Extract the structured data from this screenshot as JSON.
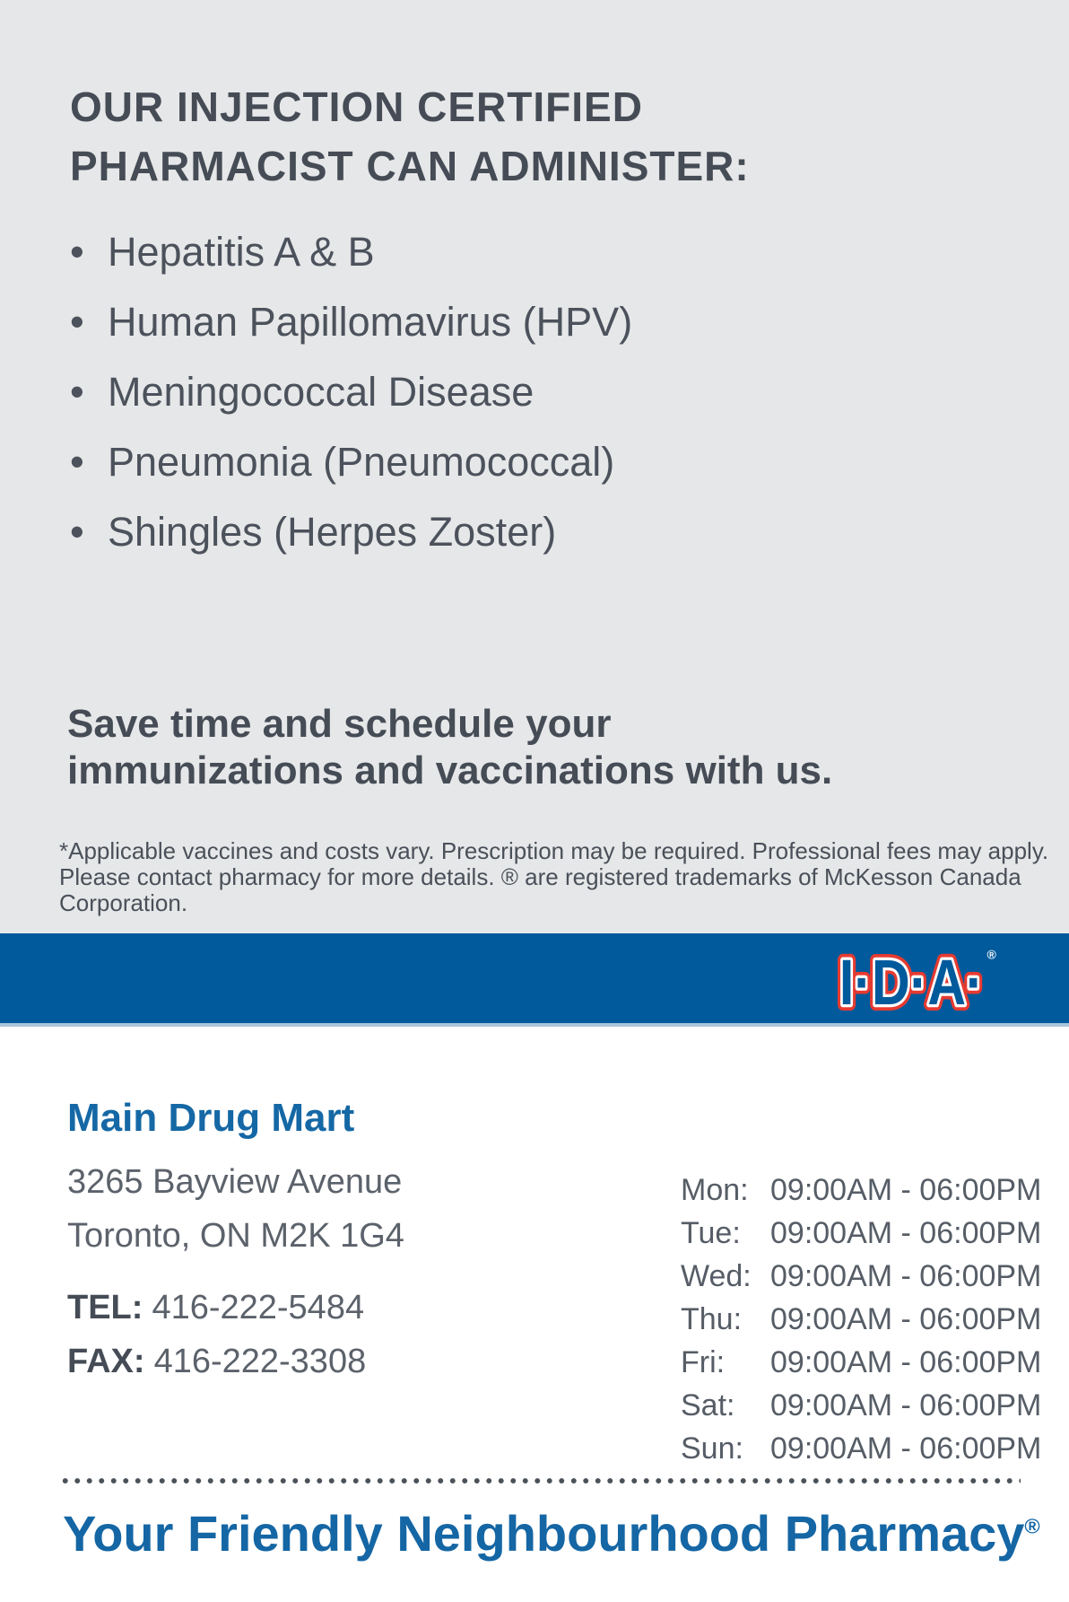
{
  "header": {
    "title_line1": "OUR INJECTION CERTIFIED",
    "title_line2": "PHARMACIST CAN ADMINISTER:",
    "bullet_char": "•",
    "bullets": [
      "Hepatitis A & B",
      "Human Papillomavirus (HPV)",
      "Meningococcal Disease",
      "Pneumonia (Pneumococcal)",
      "Shingles (Herpes Zoster)"
    ],
    "cta_line1": "Save time and schedule your",
    "cta_line2": "immunizations and vaccinations with us.",
    "disclaimer_line1": "*Applicable vaccines and costs vary. Prescription may be required. Professional fees may apply.",
    "disclaimer_line2": "Please contact pharmacy for more details. ® are registered trademarks of McKesson Canada Corporation."
  },
  "banner": {
    "logo_text": "I·D·A·",
    "registered": "®"
  },
  "store": {
    "name": "Main Drug Mart",
    "address_line1": "3265 Bayview Avenue",
    "address_line2": "Toronto, ON M2K 1G4",
    "tel_label": "TEL:",
    "tel": "416-222-5484",
    "fax_label": "FAX:",
    "fax": "416-222-3308"
  },
  "hours": [
    {
      "day": "Mon:",
      "time": "09:00AM - 06:00PM"
    },
    {
      "day": "Tue:",
      "time": "09:00AM - 06:00PM"
    },
    {
      "day": "Wed:",
      "time": "09:00AM - 06:00PM"
    },
    {
      "day": "Thu:",
      "time": "09:00AM - 06:00PM"
    },
    {
      "day": "Fri:",
      "time": "09:00AM - 06:00PM"
    },
    {
      "day": "Sat:",
      "time": "09:00AM - 06:00PM"
    },
    {
      "day": "Sun:",
      "time": "09:00AM - 06:00PM"
    }
  ],
  "tagline": "Your Friendly Neighbourhood Pharmacy",
  "tagline_registered": "®",
  "colors": {
    "panel_gray": "#e6e7e8",
    "banner_blue": "#005a9c",
    "banner_rule_light_blue": "#a9c7de",
    "logo_red": "#e63a30",
    "store_name_blue": "#1568a5",
    "tagline_blue": "#1566a4",
    "heading_slate": "#454c56",
    "body_slate": "#4c525c"
  }
}
